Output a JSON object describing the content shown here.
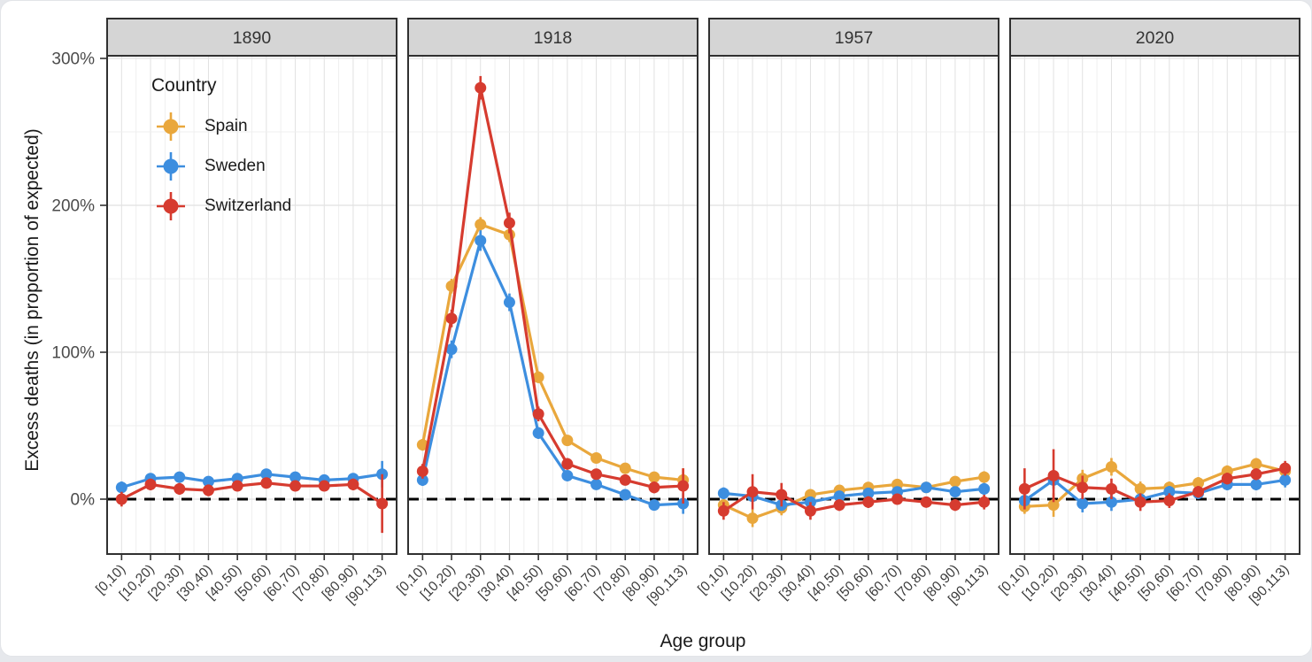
{
  "chart": {
    "y_axis_title": "Excess deaths (in proportion of expected)",
    "x_axis_title": "Age group",
    "legend_title": "Country"
  },
  "chart_data": {
    "type": "line",
    "title": "",
    "facets": [
      "1890",
      "1918",
      "1957",
      "2020"
    ],
    "categories": [
      "[0,10)",
      "[10,20)",
      "[20,30)",
      "[30,40)",
      "[40,50)",
      "[50,60)",
      "[60,70)",
      "[70,80)",
      "[80,90)",
      "[90,113)"
    ],
    "xlabel": "Age group",
    "ylabel": "Excess deaths (in proportion of expected)",
    "y_tick_labels": [
      "0%",
      "100%",
      "200%",
      "300%"
    ],
    "y_ticks_pct": [
      0,
      100,
      200,
      300
    ],
    "y_minor_ticks_pct": [
      50,
      150,
      250
    ],
    "ylim_pct": [
      -37,
      302
    ],
    "reference_line_pct": 0,
    "grid": true,
    "legend_position": "inside first panel, top-left",
    "marker": "point with vertical error bar",
    "series": [
      {
        "name": "Spain",
        "color": "#E9A73C",
        "values_pct": {
          "1890": null,
          "1918": [
            37,
            145,
            187,
            180,
            83,
            40,
            28,
            21,
            15,
            13
          ],
          "1957": [
            -4,
            -13,
            -6,
            3,
            6,
            8,
            10,
            8,
            12,
            15
          ],
          "2020": [
            -5,
            -4,
            14,
            22,
            7,
            8,
            11,
            19,
            24,
            19
          ]
        },
        "ci_halfwidth_pct": {
          "1890": null,
          "1918": [
            4,
            5,
            5,
            5,
            4,
            3,
            3,
            3,
            3,
            8
          ],
          "1957": [
            4,
            6,
            5,
            3,
            3,
            3,
            3,
            3,
            3,
            4
          ],
          "2020": [
            5,
            8,
            6,
            6,
            5,
            4,
            4,
            4,
            4,
            5
          ]
        }
      },
      {
        "name": "Sweden",
        "color": "#3D8EDF",
        "values_pct": {
          "1890": [
            8,
            14,
            15,
            12,
            14,
            17,
            15,
            13,
            14,
            17
          ],
          "1918": [
            13,
            102,
            176,
            134,
            45,
            16,
            10,
            3,
            -4,
            -3
          ],
          "1957": [
            4,
            2,
            -4,
            -2,
            2,
            4,
            5,
            8,
            5,
            7
          ],
          "2020": [
            -1,
            13,
            -3,
            -2,
            0,
            5,
            4,
            10,
            10,
            13
          ]
        },
        "ci_halfwidth_pct": {
          "1890": [
            4,
            3,
            3,
            3,
            3,
            3,
            3,
            3,
            3,
            9
          ],
          "1918": [
            4,
            6,
            7,
            6,
            4,
            3,
            3,
            3,
            3,
            7
          ],
          "1957": [
            4,
            4,
            4,
            3,
            3,
            3,
            3,
            3,
            3,
            4
          ],
          "2020": [
            5,
            6,
            6,
            6,
            4,
            4,
            4,
            4,
            4,
            5
          ]
        }
      },
      {
        "name": "Switzerland",
        "color": "#D63B2F",
        "values_pct": {
          "1890": [
            0,
            10,
            7,
            6,
            9,
            11,
            9,
            9,
            10,
            -3
          ],
          "1918": [
            19,
            123,
            280,
            188,
            58,
            24,
            17,
            13,
            8,
            9
          ],
          "1957": [
            -8,
            5,
            3,
            -8,
            -4,
            -2,
            0,
            -2,
            -4,
            -2
          ],
          "2020": [
            7,
            16,
            8,
            7,
            -2,
            -1,
            5,
            14,
            17,
            21
          ]
        },
        "ci_halfwidth_pct": {
          "1890": [
            5,
            4,
            4,
            4,
            3,
            3,
            3,
            3,
            4,
            20
          ],
          "1918": [
            5,
            6,
            8,
            7,
            5,
            4,
            3,
            3,
            4,
            12
          ],
          "1957": [
            6,
            12,
            8,
            6,
            4,
            4,
            3,
            3,
            4,
            5
          ],
          "2020": [
            14,
            18,
            8,
            7,
            6,
            5,
            4,
            4,
            4,
            5
          ]
        }
      }
    ]
  },
  "colors": {
    "facet_header_bg": "#D5D5D5",
    "panel_border": "#303030",
    "grid_major": "#E1E1E1",
    "grid_minor": "#EFEFEF",
    "reference_line": "#000000",
    "tick_mark": "#333333",
    "x_tick_label": "#3A3A3A",
    "y_tick_label": "#4B4B4B",
    "axis_title": "#1A1A1A",
    "page_edge": "#E6E8EC"
  }
}
